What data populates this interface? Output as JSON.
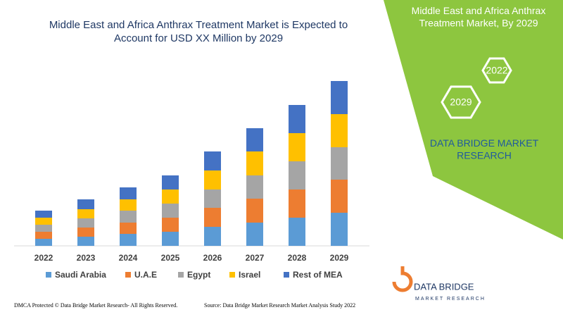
{
  "chart_data": {
    "type": "stacked_bar",
    "title": "Middle East and Africa Anthrax Treatment Market is Expected to Account for USD XX Million by 2029",
    "categories": [
      "2022",
      "2023",
      "2024",
      "2025",
      "2026",
      "2027",
      "2028",
      "2029"
    ],
    "series": [
      {
        "name": "Saudi Arabia",
        "color": "#5b9bd5",
        "values": [
          10,
          13,
          17,
          20,
          27,
          33,
          40,
          47
        ]
      },
      {
        "name": "U.A.E",
        "color": "#ed7d31",
        "values": [
          10,
          13,
          16,
          20,
          27,
          34,
          40,
          47
        ]
      },
      {
        "name": "Egypt",
        "color": "#a5a5a5",
        "values": [
          10,
          13,
          17,
          20,
          26,
          33,
          40,
          46
        ]
      },
      {
        "name": "Israel",
        "color": "#ffc000",
        "values": [
          10,
          13,
          16,
          20,
          27,
          34,
          40,
          47
        ]
      },
      {
        "name": "Rest of MEA",
        "color": "#4472c4",
        "values": [
          10,
          14,
          17,
          20,
          27,
          33,
          40,
          47
        ]
      }
    ]
  },
  "panel": {
    "heading": "Middle East and Africa Anthrax Treatment Market, By 2029",
    "hex_top": "2022",
    "hex_bottom": "2029",
    "brand": "DATA BRIDGE MARKET RESEARCH"
  },
  "logo": {
    "name": "DATA BRIDGE",
    "tagline": "MARKET RESEARCH"
  },
  "footer": {
    "left": "DMCA Protected © Data Bridge Market Research- All Rights Reserved.",
    "right": "Source: Data Bridge Market Research Market Analysis Study 2022"
  }
}
